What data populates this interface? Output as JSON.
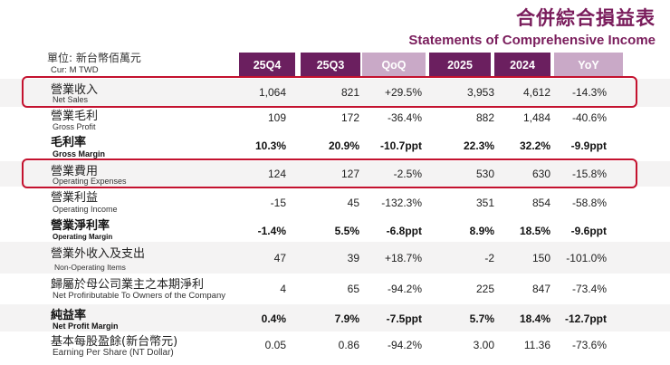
{
  "title_cn": "合併綜合損益表",
  "title_en": "Statements of Comprehensive Income",
  "unit_cn": "單位: 新台幣佰萬元",
  "unit_en": "Cur: M TWD",
  "headers": [
    "25Q4",
    "25Q3",
    "QoQ",
    "2025",
    "2024",
    "YoY"
  ],
  "colors": {
    "dark_header": "#6b1f5f",
    "light_header": "#c9a9c7",
    "title": "#7a1d5c",
    "highlight": "#c4122f"
  },
  "rows": [
    {
      "cn": "營業收入",
      "en": "Net Sales",
      "values": [
        "1,064",
        "821",
        "+29.5%",
        "3,953",
        "4,612",
        "-14.3%"
      ]
    },
    {
      "cn": "營業毛利",
      "en": "Gross Profit",
      "values": [
        "109",
        "172",
        "-36.4%",
        "882",
        "1,484",
        "-40.6%"
      ]
    },
    {
      "cn": "毛利率",
      "en": "Gross Margin",
      "values": [
        "10.3%",
        "20.9%",
        "-10.7ppt",
        "22.3%",
        "32.2%",
        "-9.9ppt"
      ]
    },
    {
      "cn": "營業費用",
      "en": "Operating Expenses",
      "values": [
        "124",
        "127",
        "-2.5%",
        "530",
        "630",
        "-15.8%"
      ]
    },
    {
      "cn": "營業利益",
      "en": "Operating Income",
      "values": [
        "-15",
        "45",
        "-132.3%",
        "351",
        "854",
        "-58.8%"
      ]
    },
    {
      "cn": "營業淨利率",
      "en": "Operating Margin",
      "values": [
        "-1.4%",
        "5.5%",
        "-6.8ppt",
        "8.9%",
        "18.5%",
        "-9.6ppt"
      ]
    },
    {
      "cn": "營業外收入及支出",
      "en": "Non-Operating Items",
      "values": [
        "47",
        "39",
        "+18.7%",
        "-2",
        "150",
        "-101.0%"
      ]
    },
    {
      "cn": "歸屬於母公司業主之本期淨利",
      "en": "Net Profiributable To Owners of the Company",
      "values": [
        "4",
        "65",
        "-94.2%",
        "225",
        "847",
        "-73.4%"
      ]
    },
    {
      "cn": "純益率",
      "en": "Net Profit Margin",
      "values": [
        "0.4%",
        "7.9%",
        "-7.5ppt",
        "5.7%",
        "18.4%",
        "-12.7ppt"
      ]
    },
    {
      "cn": "基本每股盈餘(新台幣元)",
      "en": "Earning Per Share (NT Dollar)",
      "values": [
        "0.05",
        "0.86",
        "-94.2%",
        "3.00",
        "11.36",
        "-73.6%"
      ]
    }
  ]
}
